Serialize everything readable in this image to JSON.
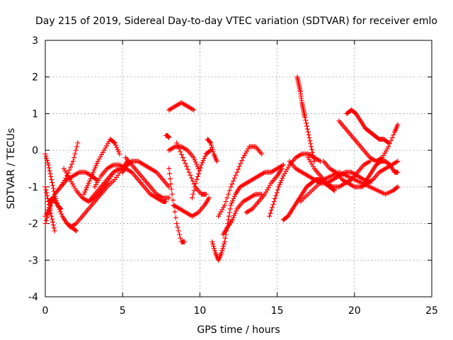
{
  "chart_data": {
    "type": "scatter",
    "title": "Day 215 of 2019, Sidereal Day-to-day VTEC variation (SDTVAR) for receiver emlo",
    "xlabel": "GPS time / hours",
    "ylabel": "SDTVAR / TECUs",
    "xlim": [
      0,
      25
    ],
    "ylim": [
      -4,
      3
    ],
    "xticks": [
      "0",
      "5",
      "10",
      "15",
      "20",
      "25"
    ],
    "yticks": [
      "-4",
      "-3",
      "-2",
      "-1",
      "0",
      "1",
      "2",
      "3"
    ],
    "grid": true,
    "marker": "+",
    "color": "#ff0000",
    "traces": [
      {
        "x": [
          0.0,
          0.2,
          0.4,
          0.6,
          0.8,
          1.0
        ],
        "y": [
          -0.1,
          -0.4,
          -0.8,
          -1.2,
          -1.5,
          -1.6
        ]
      },
      {
        "x": [
          0.0,
          0.2,
          0.4,
          0.6
        ],
        "y": [
          -1.0,
          -1.4,
          -1.8,
          -2.2
        ]
      },
      {
        "x": [
          0.0,
          0.3,
          0.6,
          1.0,
          1.4,
          1.8,
          2.1
        ],
        "y": [
          -1.8,
          -1.5,
          -1.2,
          -1.0,
          -0.7,
          -0.3,
          0.2
        ]
      },
      {
        "x": [
          0.0,
          0.3,
          0.6,
          1.0,
          1.4,
          1.8,
          2.2,
          2.6,
          3.0,
          3.3
        ],
        "y": [
          -2.0,
          -1.6,
          -1.2,
          -1.0,
          -0.8,
          -0.7,
          -0.6,
          -0.6,
          -0.7,
          -0.8
        ]
      },
      {
        "x": [
          0.2,
          0.5,
          0.8,
          1.1,
          1.4,
          1.7,
          2.0
        ],
        "y": [
          -1.4,
          -1.3,
          -1.5,
          -1.8,
          -2.0,
          -2.1,
          -2.2
        ]
      },
      {
        "x": [
          1.2,
          1.6,
          2.0,
          2.4,
          2.8,
          3.2,
          3.6,
          4.0,
          4.4
        ],
        "y": [
          -0.5,
          -0.8,
          -1.1,
          -1.3,
          -1.4,
          -1.3,
          -1.1,
          -0.9,
          -0.6
        ]
      },
      {
        "x": [
          1.6,
          2.0,
          2.4,
          2.8,
          3.2,
          3.6,
          4.0,
          4.5,
          5.0,
          5.3
        ],
        "y": [
          -2.1,
          -2.0,
          -1.8,
          -1.6,
          -1.4,
          -1.2,
          -1.0,
          -0.8,
          -0.5,
          -0.3
        ]
      },
      {
        "x": [
          2.5,
          2.8,
          3.1,
          3.4,
          3.8,
          4.2,
          4.5,
          4.8
        ],
        "y": [
          -1.2,
          -0.9,
          -0.6,
          -0.3,
          0.0,
          0.3,
          0.2,
          -0.1
        ]
      },
      {
        "x": [
          2.8,
          3.2,
          3.6,
          4.0,
          4.4,
          4.8,
          5.2,
          5.6,
          6.0,
          6.4,
          6.8,
          7.2,
          7.6,
          7.8
        ],
        "y": [
          -1.4,
          -1.2,
          -1.0,
          -0.8,
          -0.6,
          -0.5,
          -0.5,
          -0.6,
          -0.8,
          -1.0,
          -1.2,
          -1.3,
          -1.4,
          -1.4
        ]
      },
      {
        "x": [
          3.2,
          3.6,
          4.0,
          4.4,
          4.8,
          5.2
        ],
        "y": [
          -1.0,
          -0.7,
          -0.5,
          -0.4,
          -0.4,
          -0.5
        ]
      },
      {
        "x": [
          5.0,
          5.3,
          5.6,
          6.0,
          6.4,
          6.8,
          7.2,
          7.6,
          8.0
        ],
        "y": [
          -0.6,
          -0.4,
          -0.3,
          -0.3,
          -0.4,
          -0.5,
          -0.6,
          -0.8,
          -1.0
        ]
      },
      {
        "x": [
          5.2,
          5.6,
          6.0,
          6.4,
          6.8,
          7.2,
          7.6,
          8.0
        ],
        "y": [
          -0.2,
          -0.4,
          -0.6,
          -0.8,
          -1.0,
          -1.2,
          -1.3,
          -1.3
        ]
      },
      {
        "x": [
          7.8,
          7.9,
          8.0
        ],
        "y": [
          0.4,
          0.4,
          0.35
        ]
      },
      {
        "x": [
          8.0,
          8.4,
          8.8,
          9.2,
          9.6
        ],
        "y": [
          1.1,
          1.2,
          1.3,
          1.2,
          1.1
        ]
      },
      {
        "x": [
          8.0,
          8.4,
          8.8,
          9.2,
          9.6,
          9.9
        ],
        "y": [
          0.0,
          0.1,
          0.1,
          0.0,
          -0.2,
          -0.5
        ]
      },
      {
        "x": [
          8.0,
          8.2,
          8.5,
          8.8,
          9.0
        ],
        "y": [
          -0.5,
          -1.2,
          -2.0,
          -2.5,
          -2.5
        ]
      },
      {
        "x": [
          8.3,
          8.7,
          9.1,
          9.5,
          9.9,
          10.3,
          10.6
        ],
        "y": [
          -1.5,
          -1.6,
          -1.7,
          -1.8,
          -1.7,
          -1.5,
          -1.3
        ]
      },
      {
        "x": [
          8.5,
          8.9,
          9.3,
          9.7,
          10.1,
          10.4
        ],
        "y": [
          0.2,
          -0.2,
          -0.6,
          -1.0,
          -1.2,
          -1.2
        ]
      },
      {
        "x": [
          9.5,
          9.8,
          10.1,
          10.4,
          10.7
        ],
        "y": [
          -1.3,
          -0.8,
          -0.4,
          -0.1,
          0.0
        ]
      },
      {
        "x": [
          10.5,
          10.7,
          10.9,
          11.1
        ],
        "y": [
          0.3,
          0.2,
          -0.1,
          -0.3
        ]
      },
      {
        "x": [
          10.8,
          11.0,
          11.2,
          11.4,
          11.6,
          11.8,
          12.0,
          12.3,
          12.6,
          13.0,
          13.4,
          13.8,
          14.2,
          14.6,
          15.0,
          15.4
        ],
        "y": [
          -2.5,
          -2.8,
          -3.0,
          -2.8,
          -2.5,
          -2.0,
          -1.5,
          -1.2,
          -1.0,
          -0.9,
          -0.8,
          -0.7,
          -0.6,
          -0.6,
          -0.5,
          -0.4
        ]
      },
      {
        "x": [
          11.2,
          11.6,
          12.0,
          12.4,
          12.8,
          13.2,
          13.6,
          14.0
        ],
        "y": [
          -1.8,
          -1.5,
          -1.0,
          -0.6,
          -0.2,
          0.1,
          0.1,
          -0.1
        ]
      },
      {
        "x": [
          11.5,
          11.8,
          12.1,
          12.4,
          12.8,
          13.2,
          13.6,
          14.0
        ],
        "y": [
          -2.3,
          -2.1,
          -1.9,
          -1.6,
          -1.4,
          -1.3,
          -1.2,
          -1.2
        ]
      },
      {
        "x": [
          13.0,
          13.4,
          13.8,
          14.2,
          14.6,
          15.0,
          15.3
        ],
        "y": [
          -1.7,
          -1.6,
          -1.4,
          -1.2,
          -0.9,
          -0.7,
          -0.5
        ]
      },
      {
        "x": [
          14.5,
          14.8,
          15.1,
          15.4,
          15.8,
          16.2,
          16.6,
          17.0,
          17.4,
          17.8
        ],
        "y": [
          -1.8,
          -1.4,
          -1.0,
          -0.7,
          -0.4,
          -0.2,
          -0.1,
          -0.1,
          -0.2,
          -0.3
        ]
      },
      {
        "x": [
          15.4,
          15.7,
          16.0,
          16.3,
          16.6,
          16.9,
          17.2,
          17.5,
          17.8,
          18.1,
          18.4,
          18.7
        ],
        "y": [
          -1.9,
          -1.8,
          -1.6,
          -1.4,
          -1.2,
          -1.0,
          -0.9,
          -0.8,
          -0.8,
          -0.9,
          -1.0,
          -1.1
        ]
      },
      {
        "x": [
          15.8,
          16.2,
          16.6,
          17.0,
          17.4,
          17.8,
          18.2,
          18.6,
          19.0,
          19.4,
          19.8,
          20.2,
          20.6,
          21.0
        ],
        "y": [
          -0.3,
          -0.5,
          -0.6,
          -0.7,
          -0.8,
          -0.9,
          -0.9,
          -0.8,
          -0.7,
          -0.6,
          -0.6,
          -0.7,
          -0.8,
          -0.9
        ]
      },
      {
        "x": [
          16.3,
          16.4,
          16.5,
          16.6,
          16.7,
          16.8,
          17.0,
          17.2,
          17.4
        ],
        "y": [
          2.0,
          1.8,
          1.6,
          1.3,
          1.1,
          0.9,
          0.5,
          0.1,
          -0.3
        ]
      },
      {
        "x": [
          17.0,
          17.4,
          17.8,
          18.2,
          18.6,
          19.0,
          19.4,
          19.8,
          20.2,
          20.6,
          21.0
        ],
        "y": [
          -0.2,
          -0.5,
          -0.7,
          -0.9,
          -1.0,
          -1.0,
          -0.9,
          -0.8,
          -0.6,
          -0.4,
          -0.3
        ]
      },
      {
        "x": [
          16.5,
          17.0,
          17.5,
          18.0,
          18.5,
          19.0,
          19.5,
          20.0,
          20.5,
          21.0,
          21.5,
          22.0,
          22.5,
          22.8
        ],
        "y": [
          -1.4,
          -1.2,
          -1.0,
          -0.8,
          -0.7,
          -0.6,
          -0.7,
          -0.8,
          -0.9,
          -1.0,
          -1.1,
          -1.2,
          -1.1,
          -1.0
        ]
      },
      {
        "x": [
          18.0,
          18.4,
          18.8,
          19.2,
          19.6,
          20.0,
          20.4,
          20.8,
          21.2,
          21.6,
          22.0,
          22.4,
          22.8
        ],
        "y": [
          -0.3,
          -0.5,
          -0.6,
          -0.8,
          -0.9,
          -1.0,
          -1.0,
          -0.9,
          -0.8,
          -0.6,
          -0.5,
          -0.4,
          -0.3
        ]
      },
      {
        "x": [
          19.5,
          19.8,
          20.1,
          20.4,
          20.7,
          21.0,
          21.3,
          21.6,
          21.9,
          22.2
        ],
        "y": [
          1.0,
          1.1,
          1.0,
          0.8,
          0.6,
          0.5,
          0.4,
          0.3,
          0.3,
          0.2
        ]
      },
      {
        "x": [
          19.0,
          19.4,
          19.8,
          20.2,
          20.6,
          21.0,
          21.4,
          21.8,
          22.2,
          22.6,
          22.8
        ],
        "y": [
          0.8,
          0.6,
          0.4,
          0.2,
          0.0,
          -0.2,
          -0.3,
          -0.2,
          0.1,
          0.5,
          0.7
        ]
      },
      {
        "x": [
          20.5,
          20.8,
          21.1,
          21.4,
          21.7,
          22.0,
          22.3,
          22.6,
          22.8
        ],
        "y": [
          -1.0,
          -0.8,
          -0.6,
          -0.4,
          -0.3,
          -0.3,
          -0.4,
          -0.6,
          -0.6
        ]
      }
    ]
  }
}
